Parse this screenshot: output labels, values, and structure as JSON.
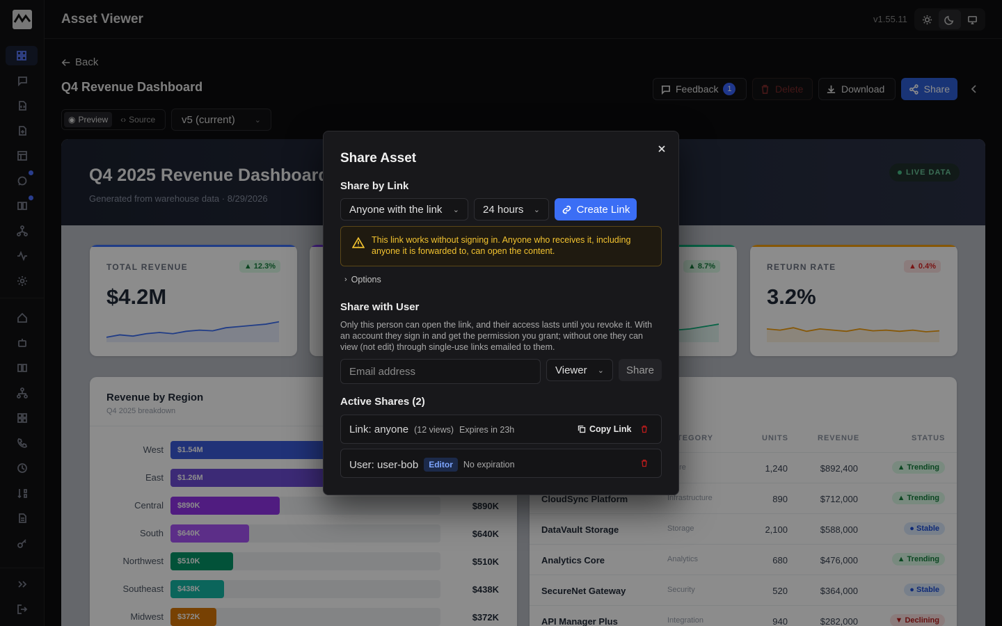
{
  "app": {
    "title": "Asset Viewer",
    "version": "v1.55.11"
  },
  "nav": {
    "back_label": "Back",
    "page_title": "Q4 Revenue Dashboard",
    "preview_label": "Preview",
    "source_label": "Source",
    "version_select": "v5 (current)"
  },
  "actions": {
    "feedback_label": "Feedback",
    "feedback_count": "1",
    "delete_label": "Delete",
    "download_label": "Download",
    "share_label": "Share"
  },
  "dashboard": {
    "title": "Q4 2025 Revenue Dashboard",
    "subtitle": "Generated from warehouse data · 8/29/2026",
    "live_label": "LIVE DATA",
    "kpis": [
      {
        "label": "TOTAL REVENUE",
        "value": "$4.2M",
        "delta": "▲ 12.3%",
        "accent": "#3b6ef5",
        "delta_color": "#15803d",
        "delta_bg": "#dcfce7",
        "spark": [
          0.15,
          0.25,
          0.2,
          0.3,
          0.35,
          0.3,
          0.4,
          0.45,
          0.42,
          0.55,
          0.6,
          0.65,
          0.7,
          0.8
        ]
      },
      {
        "label": "",
        "value": "",
        "delta": "",
        "accent": "#7c3aed",
        "delta_color": "#15803d",
        "delta_bg": "#dcfce7",
        "spark": []
      },
      {
        "label": "",
        "value": "",
        "delta": "▲ 8.7%",
        "accent": "#10b981",
        "delta_color": "#15803d",
        "delta_bg": "#dcfce7",
        "spark": [
          0.2,
          0.3,
          0.25,
          0.35,
          0.4,
          0.5,
          0.7
        ]
      },
      {
        "label": "RETURN RATE",
        "value": "3.2%",
        "delta": "▲ 0.4%",
        "accent": "#f59e0b",
        "delta_color": "#dc2626",
        "delta_bg": "#fee2e2",
        "spark": [
          0.5,
          0.45,
          0.55,
          0.4,
          0.5,
          0.45,
          0.4,
          0.5,
          0.42,
          0.45,
          0.4,
          0.45,
          0.38,
          0.42
        ]
      }
    ],
    "regions": {
      "title": "Revenue by Region",
      "subtitle": "Q4 2025 breakdown",
      "rows": [
        {
          "name": "West",
          "label": "$1.54M",
          "value": "$1.54M",
          "amount": 1540,
          "color": "#3b5bdb"
        },
        {
          "name": "East",
          "label": "$1.26M",
          "value": "$1.26M",
          "amount": 1260,
          "color": "#6d4ed8"
        },
        {
          "name": "Central",
          "label": "$890K",
          "value": "$890K",
          "amount": 890,
          "color": "#9333ea"
        },
        {
          "name": "South",
          "label": "$640K",
          "value": "$640K",
          "amount": 640,
          "color": "#a855f7"
        },
        {
          "name": "Northwest",
          "label": "$510K",
          "value": "$510K",
          "amount": 510,
          "color": "#059669"
        },
        {
          "name": "Southeast",
          "label": "$438K",
          "value": "$438K",
          "amount": 438,
          "color": "#14b8a6"
        },
        {
          "name": "Midwest",
          "label": "$372K",
          "value": "$372K",
          "amount": 372,
          "color": "#d97706"
        }
      ]
    },
    "products": {
      "columns": [
        "TEGORY",
        "UNITS",
        "REVENUE",
        "STATUS"
      ],
      "rows": [
        {
          "name": "",
          "category": "tware",
          "units": "1,240",
          "revenue": "$892,400",
          "status": "▲ Trending",
          "status_type": "up"
        },
        {
          "name": "CloudSync Platform",
          "category": "Infrastructure",
          "units": "890",
          "revenue": "$712,000",
          "status": "▲ Trending",
          "status_type": "up"
        },
        {
          "name": "DataVault Storage",
          "category": "Storage",
          "units": "2,100",
          "revenue": "$588,000",
          "status": "● Stable",
          "status_type": "stable"
        },
        {
          "name": "Analytics Core",
          "category": "Analytics",
          "units": "680",
          "revenue": "$476,000",
          "status": "▲ Trending",
          "status_type": "up"
        },
        {
          "name": "SecureNet Gateway",
          "category": "Security",
          "units": "520",
          "revenue": "$364,000",
          "status": "● Stable",
          "status_type": "stable"
        },
        {
          "name": "API Manager Plus",
          "category": "Integration",
          "units": "940",
          "revenue": "$282,000",
          "status": "▼ Declining",
          "status_type": "down"
        }
      ]
    }
  },
  "modal": {
    "title": "Share Asset",
    "link_heading": "Share by Link",
    "audience_select": "Anyone with the link",
    "duration_select": "24 hours",
    "create_label": "Create Link",
    "warning": "This link works without signing in. Anyone who receives it, including anyone it is forwarded to, can open the content.",
    "options_label": "Options",
    "user_heading": "Share with User",
    "user_desc": "Only this person can open the link, and their access lasts until you revoke it. With an account they sign in and get the permission you grant; without one they can view (not edit) through single-use links emailed to them.",
    "email_placeholder": "Email address",
    "role_select": "Viewer",
    "share_label": "Share",
    "active_heading": "Active Shares (2)",
    "shares": [
      {
        "name": "Link: anyone",
        "views": "(12 views)",
        "expiry": "Expires in 23h",
        "copy_label": "Copy Link"
      },
      {
        "name": "User: user-bob",
        "role": "Editor",
        "expiry": "No expiration"
      }
    ]
  },
  "colors": {
    "accent": "#3b6ef5",
    "warning": "#f4c430",
    "danger": "#dc2626"
  }
}
